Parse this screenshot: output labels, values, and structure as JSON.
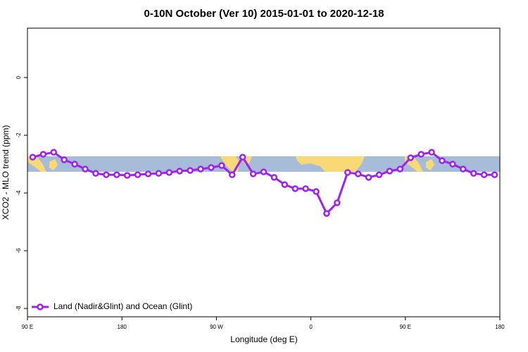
{
  "chart_data": {
    "type": "line",
    "title": "0-10N October (Ver 10)   2015-01-01 to 2020-12-18",
    "x_label": "Longitude (deg E)",
    "y_label": "XCO2 - MLO trend (ppm)",
    "x": [
      95,
      105,
      115,
      125,
      135,
      145,
      155,
      165,
      175,
      185,
      195,
      205,
      215,
      225,
      235,
      245,
      255,
      265,
      275,
      285,
      295,
      305,
      315,
      325,
      335,
      345,
      355,
      365,
      375,
      385,
      395,
      405,
      415,
      425,
      435,
      445,
      455,
      465,
      475,
      485,
      495,
      505,
      515,
      525,
      535
    ],
    "series": [
      {
        "name": "Land (Nadir&Glint) and Ocean (Glint)",
        "color": "#a020f0",
        "values": [
          -2.76,
          -2.66,
          -2.59,
          -2.85,
          -3.0,
          -3.17,
          -3.32,
          -3.37,
          -3.37,
          -3.39,
          -3.37,
          -3.34,
          -3.32,
          -3.29,
          -3.24,
          -3.22,
          -3.17,
          -3.12,
          -3.05,
          -3.37,
          -2.76,
          -3.34,
          -3.27,
          -3.46,
          -3.71,
          -3.85,
          -3.85,
          -3.95,
          -4.71,
          -4.34,
          -3.29,
          -3.34,
          -3.46,
          -3.37,
          -3.24,
          -3.17,
          -2.78,
          -2.66,
          -2.59,
          -2.88,
          -3.0,
          -3.17,
          -3.32,
          -3.37,
          -3.37
        ]
      }
    ],
    "xlim": [
      90,
      540
    ],
    "xticks": [
      {
        "value": 90,
        "label": "90 E"
      },
      180,
      {
        "value": 270,
        "label": "90 W"
      },
      {
        "value": 360,
        "label": "0"
      },
      {
        "value": 450,
        "label": "90 E"
      },
      {
        "value": 540,
        "label": "180"
      }
    ],
    "ylim": [
      -8.29,
      1.71
    ],
    "yticks": [
      0,
      -2,
      -4,
      -6,
      -8
    ],
    "legend": "bottom-left"
  }
}
